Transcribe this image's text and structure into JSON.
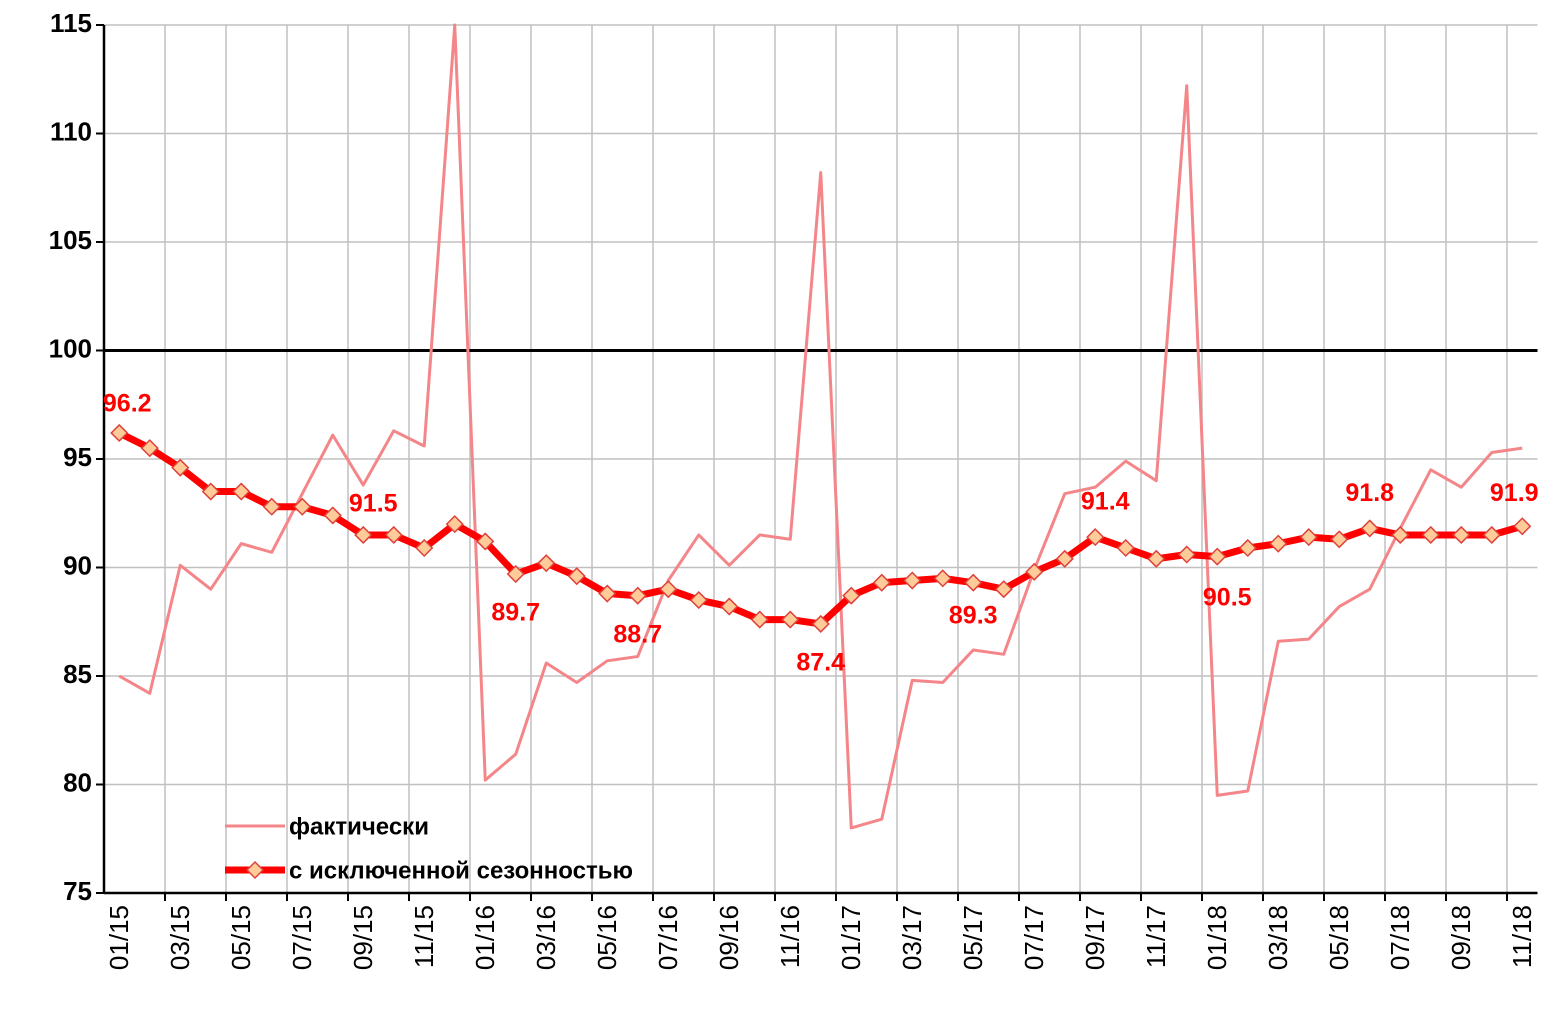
{
  "chart_data": {
    "type": "line",
    "categories": [
      "01/15",
      null,
      "03/15",
      null,
      "05/15",
      null,
      "07/15",
      null,
      "09/15",
      null,
      "11/15",
      null,
      "01/16",
      null,
      "03/16",
      null,
      "05/16",
      null,
      "07/16",
      null,
      "09/16",
      null,
      "11/16",
      null,
      "01/17",
      null,
      "03/17",
      null,
      "05/17",
      null,
      "07/17",
      null,
      "09/17",
      null,
      "11/17",
      null,
      "01/18",
      null,
      "03/18",
      null,
      "05/18",
      null,
      "07/18",
      null,
      "09/18",
      null,
      "11/18"
    ],
    "series": [
      {
        "name": "фактически",
        "color": "#f4868a",
        "values": [
          85.0,
          84.2,
          90.1,
          89.0,
          91.1,
          90.7,
          93.4,
          96.1,
          93.8,
          96.3,
          95.6,
          115.0,
          80.2,
          81.4,
          85.6,
          84.7,
          85.7,
          85.9,
          89.4,
          91.5,
          90.1,
          91.5,
          91.3,
          108.2,
          78.0,
          78.4,
          84.8,
          84.7,
          86.2,
          86.0,
          89.9,
          93.4,
          93.7,
          94.9,
          94.0,
          112.2,
          79.5,
          79.7,
          86.6,
          86.7,
          88.2,
          89.0,
          91.8,
          94.5,
          93.7,
          95.3,
          95.5
        ]
      },
      {
        "name": "с исключенной сезонностью",
        "color": "#ff0000",
        "values": [
          96.2,
          95.5,
          94.6,
          93.5,
          93.5,
          92.8,
          92.8,
          92.4,
          91.5,
          91.5,
          90.9,
          92.0,
          91.2,
          89.7,
          90.2,
          89.6,
          88.8,
          88.7,
          89.0,
          88.5,
          88.2,
          87.6,
          87.6,
          87.4,
          88.7,
          89.3,
          89.4,
          89.5,
          89.3,
          89.0,
          89.8,
          90.4,
          91.4,
          90.9,
          90.4,
          90.6,
          90.5,
          90.9,
          91.1,
          91.4,
          91.3,
          91.8,
          91.5,
          91.5,
          91.5,
          91.5,
          91.9
        ]
      }
    ],
    "ylim": [
      75,
      115
    ],
    "yticks": [
      75,
      80,
      85,
      90,
      95,
      100,
      105,
      110,
      115
    ],
    "reference_line": 100,
    "grid": true,
    "legend": "lower left"
  }
}
